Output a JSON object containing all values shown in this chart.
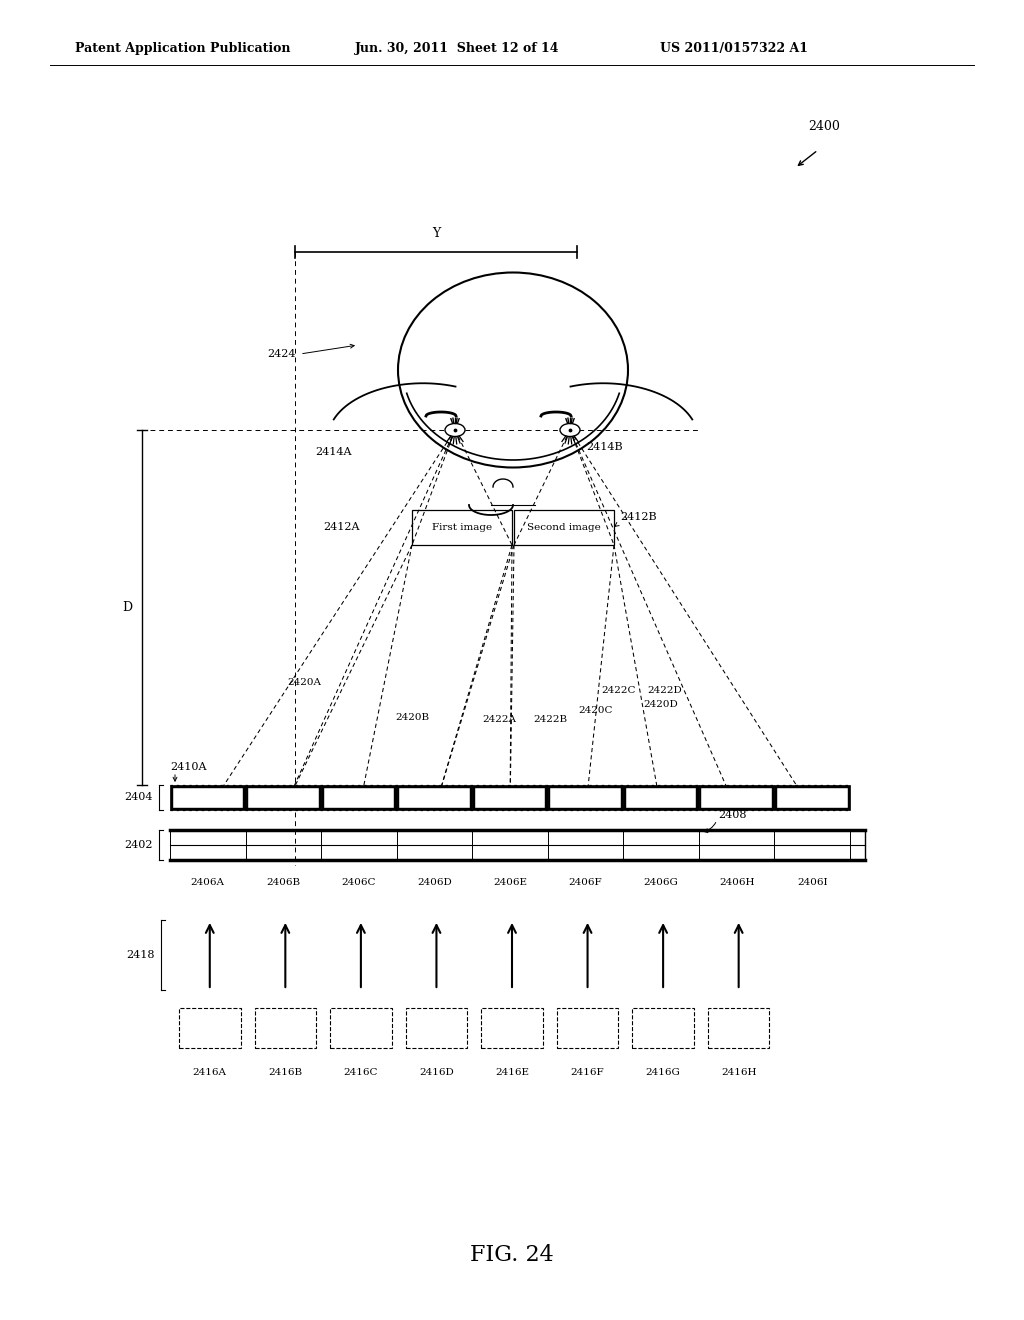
{
  "bg_color": "#ffffff",
  "header_text": "Patent Application Publication",
  "header_date": "Jun. 30, 2011  Sheet 12 of 14",
  "header_patent": "US 2011/0157322 A1",
  "fig_label": "FIG. 24",
  "ref_2400": "2400",
  "label_Y": "Y",
  "label_D": "D",
  "label_2424": "2424",
  "label_2414A": "2414A",
  "label_2414B": "2414B",
  "label_2412A": "2412A",
  "label_2412B": "2412B",
  "label_first_image": "First image",
  "label_second_image": "Second image",
  "label_2410A": "2410A",
  "label_2404": "2404",
  "label_2402": "2402",
  "label_2408": "2408",
  "label_2420A": "2420A",
  "label_2420B": "2420B",
  "label_2420C": "2420C",
  "label_2420D": "2420D",
  "label_2422A": "2422A",
  "label_2422B": "2422B",
  "label_2422C": "2422C",
  "label_2422D": "2422D",
  "label_2406A": "2406A",
  "label_2406B": "2406B",
  "label_2406C": "2406C",
  "label_2406D": "2406D",
  "label_2406E": "2406E",
  "label_2406F": "2406F",
  "label_2406G": "2406G",
  "label_2406H": "2406H",
  "label_2406I": "2406I",
  "label_2418": "2418",
  "label_2416A": "2416A",
  "label_2416B": "2416B",
  "label_2416C": "2416C",
  "label_2416D": "2416D",
  "label_2416E": "2416E",
  "label_2416F": "2416F",
  "label_2416G": "2416G",
  "label_2416H": "2416H"
}
